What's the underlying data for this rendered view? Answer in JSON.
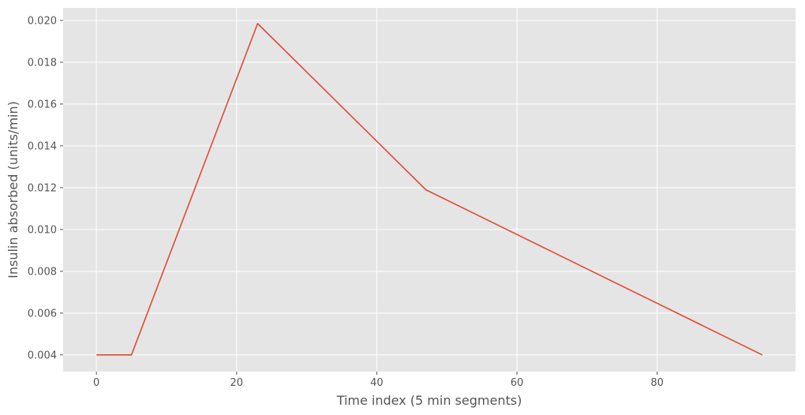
{
  "chart_data": {
    "type": "line",
    "title": "",
    "xlabel": "Time index (5 min segments)",
    "ylabel": "Insulin absorbed (units/min)",
    "xlim": [
      -4.75,
      99.75
    ],
    "ylim": [
      0.0032,
      0.0206
    ],
    "xticks": [
      0,
      20,
      40,
      60,
      80
    ],
    "xtick_labels": [
      "0",
      "20",
      "40",
      "60",
      "80"
    ],
    "yticks": [
      0.004,
      0.006,
      0.008,
      0.01,
      0.012,
      0.014,
      0.016,
      0.018,
      0.02
    ],
    "ytick_labels": [
      "0.004",
      "0.006",
      "0.008",
      "0.010",
      "0.012",
      "0.014",
      "0.016",
      "0.018",
      "0.020"
    ],
    "grid": true,
    "background": "#e5e5e5",
    "grid_color": "#ffffff",
    "series": [
      {
        "color": "#e24a33",
        "x": [
          0,
          5,
          23,
          47,
          95
        ],
        "y": [
          0.004,
          0.004,
          0.01985,
          0.0119,
          0.004
        ]
      }
    ]
  }
}
